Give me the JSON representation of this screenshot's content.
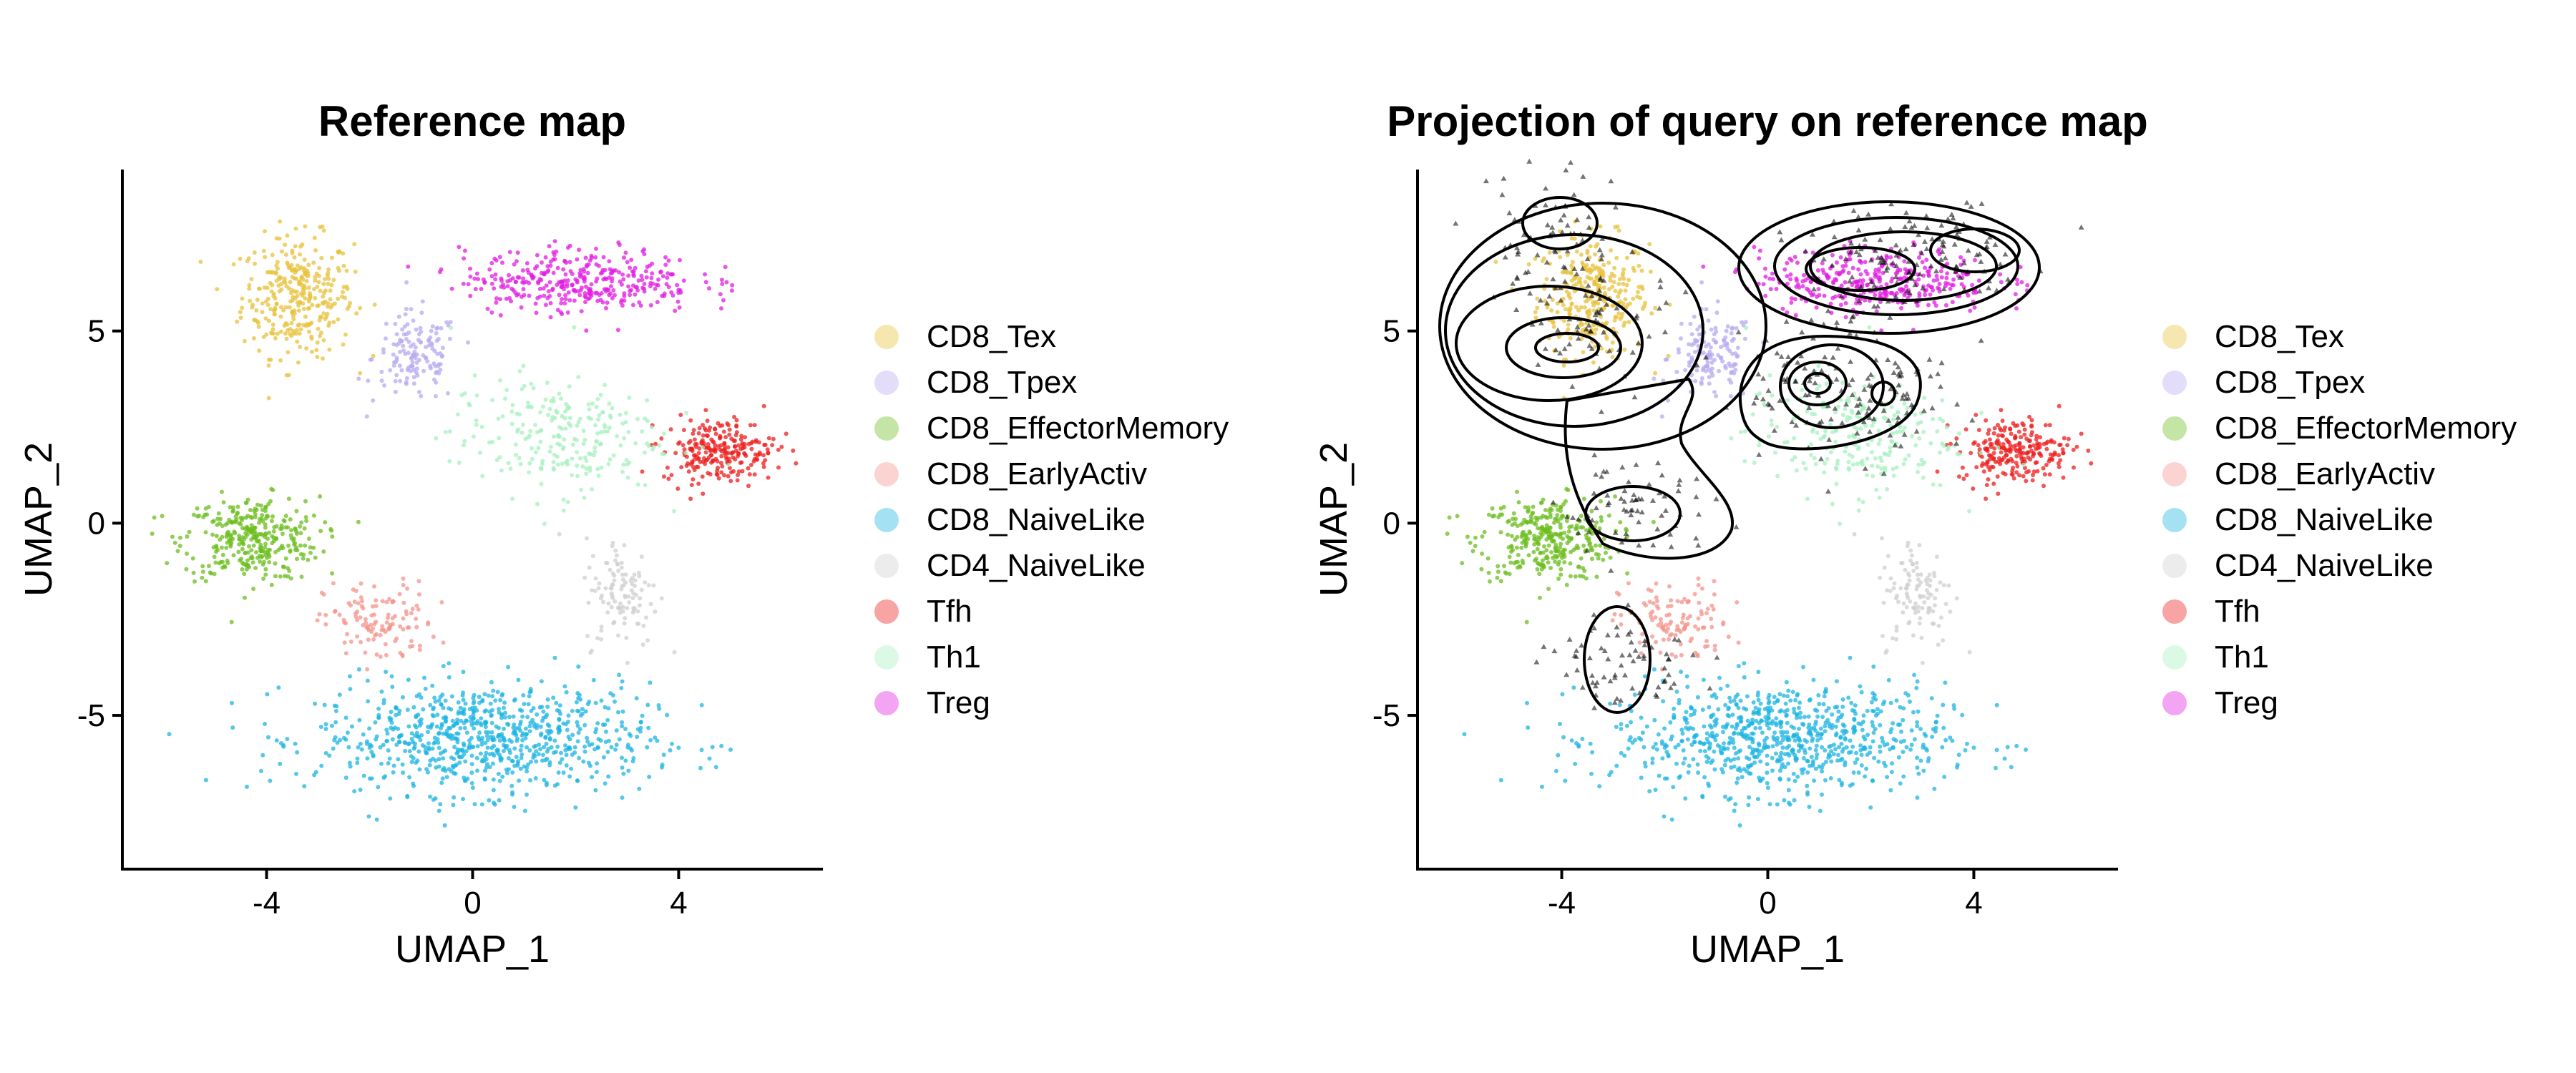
{
  "chart_data": [
    {
      "type": "scatter",
      "title": "Reference map",
      "xlabel": "UMAP_1",
      "ylabel": "UMAP_2",
      "xlim": [
        -6.8,
        6.8
      ],
      "ylim": [
        -9.0,
        9.2
      ],
      "xticks": [
        -4,
        0,
        4
      ],
      "yticks": [
        -5,
        0,
        5
      ],
      "xtick_labels": [
        "-4",
        "0",
        "4"
      ],
      "ytick_labels": [
        "-5",
        "0",
        "5"
      ],
      "grid": false,
      "legend_position": "right",
      "series": [
        {
          "name": "CD8_Tex",
          "color": "#E8C23C",
          "center": [
            -3.4,
            5.9
          ],
          "spread": [
            0.9,
            1.3
          ],
          "n": 320
        },
        {
          "name": "CD8_Tpex",
          "color": "#B8A9F0",
          "center": [
            -1.1,
            4.3
          ],
          "spread": [
            0.7,
            1.0
          ],
          "n": 140
        },
        {
          "name": "CD8_EffectorMemory",
          "color": "#6BBE1E",
          "center": [
            -4.3,
            -0.4
          ],
          "spread": [
            1.1,
            0.9
          ],
          "n": 330
        },
        {
          "name": "CD8_EarlyActiv",
          "color": "#F4938B",
          "center": [
            -1.8,
            -2.6
          ],
          "spread": [
            0.9,
            0.9
          ],
          "n": 120
        },
        {
          "name": "CD8_NaiveLike",
          "color": "#1CB4E2",
          "center": [
            0.2,
            -5.6
          ],
          "spread": [
            2.7,
            1.2
          ],
          "n": 800
        },
        {
          "name": "CD4_NaiveLike",
          "color": "#CFCFCF",
          "center": [
            2.9,
            -1.8
          ],
          "spread": [
            0.6,
            1.2
          ],
          "n": 110
        },
        {
          "name": "Tfh",
          "color": "#EE1C1C",
          "center": [
            4.8,
            1.9
          ],
          "spread": [
            0.9,
            0.7
          ],
          "n": 240
        },
        {
          "name": "Th1",
          "color": "#A6F0BE",
          "center": [
            1.6,
            2.3
          ],
          "spread": [
            1.7,
            1.3
          ],
          "n": 240
        },
        {
          "name": "Treg",
          "color": "#E21CE2",
          "center": [
            2.1,
            6.3
          ],
          "spread": [
            1.9,
            0.7
          ],
          "n": 360
        }
      ]
    },
    {
      "type": "scatter",
      "title": "Projection of query on reference map",
      "xlabel": "UMAP_1",
      "ylabel": "UMAP_2",
      "xlim": [
        -6.8,
        6.8
      ],
      "ylim": [
        -9.0,
        9.2
      ],
      "xticks": [
        -4,
        0,
        4
      ],
      "yticks": [
        -5,
        0,
        5
      ],
      "xtick_labels": [
        "-4",
        "0",
        "4"
      ],
      "ytick_labels": [
        "-5",
        "0",
        "5"
      ],
      "grid": false,
      "legend_position": "right",
      "query_overlay": {
        "marker": "triangle",
        "color": "#000000",
        "density_peaks": [
          {
            "x": -4.2,
            "y": 7.4
          },
          {
            "x": -3.3,
            "y": 5.1
          },
          {
            "x": 1.9,
            "y": 6.7
          },
          {
            "x": 3.6,
            "y": 7.0
          },
          {
            "x": 1.0,
            "y": 3.6
          },
          {
            "x": 2.3,
            "y": 3.3
          },
          {
            "x": -2.6,
            "y": 0.4
          },
          {
            "x": -2.8,
            "y": -3.6
          }
        ]
      },
      "series": [
        {
          "name": "CD8_Tex",
          "color": "#E8C23C",
          "center": [
            -3.4,
            5.9
          ],
          "spread": [
            0.9,
            1.3
          ],
          "n": 320
        },
        {
          "name": "CD8_Tpex",
          "color": "#B8A9F0",
          "center": [
            -1.1,
            4.3
          ],
          "spread": [
            0.7,
            1.0
          ],
          "n": 140
        },
        {
          "name": "CD8_EffectorMemory",
          "color": "#6BBE1E",
          "center": [
            -4.3,
            -0.4
          ],
          "spread": [
            1.1,
            0.9
          ],
          "n": 330
        },
        {
          "name": "CD8_EarlyActiv",
          "color": "#F4938B",
          "center": [
            -1.8,
            -2.6
          ],
          "spread": [
            0.9,
            0.9
          ],
          "n": 120
        },
        {
          "name": "CD8_NaiveLike",
          "color": "#1CB4E2",
          "center": [
            0.2,
            -5.6
          ],
          "spread": [
            2.7,
            1.2
          ],
          "n": 800
        },
        {
          "name": "CD4_NaiveLike",
          "color": "#CFCFCF",
          "center": [
            2.9,
            -1.8
          ],
          "spread": [
            0.6,
            1.2
          ],
          "n": 110
        },
        {
          "name": "Tfh",
          "color": "#EE1C1C",
          "center": [
            4.8,
            1.9
          ],
          "spread": [
            0.9,
            0.7
          ],
          "n": 240
        },
        {
          "name": "Th1",
          "color": "#A6F0BE",
          "center": [
            1.6,
            2.3
          ],
          "spread": [
            1.7,
            1.3
          ],
          "n": 240
        },
        {
          "name": "Treg",
          "color": "#E21CE2",
          "center": [
            2.1,
            6.3
          ],
          "spread": [
            1.9,
            0.7
          ],
          "n": 360
        }
      ]
    }
  ]
}
